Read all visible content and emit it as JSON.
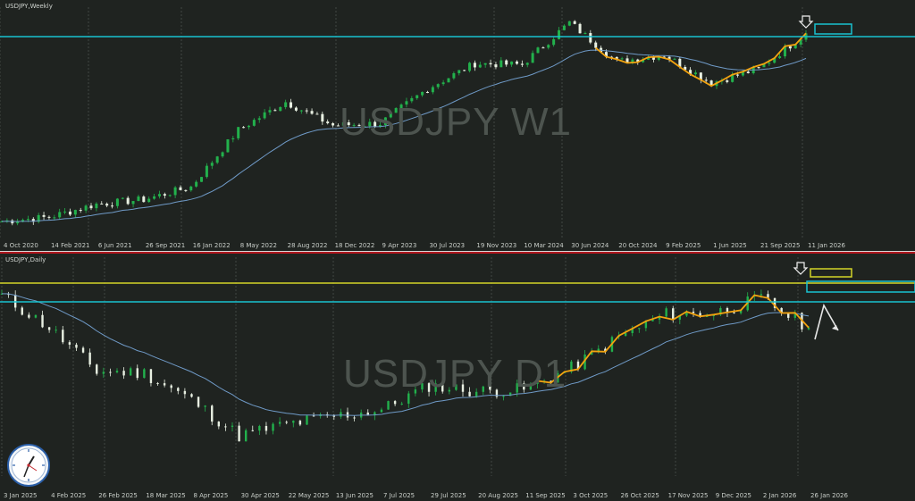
{
  "colors": {
    "bull": "#22b14c",
    "bear": "#e8f0e2",
    "ma": "#6f9ac7",
    "zigzag": "#f2a30f",
    "cyan": "#19c2d0",
    "yellow": "#d4d428",
    "grid": "#5a605b"
  },
  "w1": {
    "label": "USDJPY,Weekly",
    "watermark": "USDJPY W1",
    "arrow_icon": "down-arrow-icon",
    "x_ticks": [
      "4 Oct 2020",
      "14 Feb 2021",
      "6 Jun 2021",
      "26 Sep 2021",
      "16 Jan 2022",
      "8 May 2022",
      "28 Aug 2022",
      "18 Dec 2022",
      "9 Apr 2023",
      "30 Jul 2023",
      "19 Nov 2023",
      "10 Mar 2024",
      "30 Jun 2024",
      "20 Oct 2024",
      "9 Feb 2025",
      "1 Jun 2025",
      "21 Sep 2025",
      "11 Jan 2026"
    ]
  },
  "d1": {
    "label": "USDJPY,Daily",
    "watermark": "USDJPY D1",
    "arrow_icon": "down-arrow-icon",
    "x_ticks": [
      "3 Jan 2025",
      "4 Feb 2025",
      "26 Feb 2025",
      "18 Mar 2025",
      "8 Apr 2025",
      "30 Apr 2025",
      "22 May 2025",
      "13 Jun 2025",
      "7 Jul 2025",
      "29 Jul 2025",
      "20 Aug 2025",
      "11 Sep 2025",
      "3 Oct 2025",
      "26 Oct 2025",
      "17 Nov 2025",
      "9 Dec 2025",
      "2 Jan 2026",
      "26 Jan 2026"
    ]
  },
  "chart_data": [
    {
      "type": "candlestick",
      "symbol": "USDJPY",
      "timeframe": "W1",
      "x": [
        "4 Oct 2020",
        "14 Feb 2021",
        "6 Jun 2021",
        "26 Sep 2021",
        "16 Jan 2022",
        "8 May 2022",
        "28 Aug 2022",
        "18 Dec 2022",
        "9 Apr 2023",
        "30 Jul 2023",
        "19 Nov 2023",
        "10 Mar 2024",
        "30 Jun 2024",
        "20 Oct 2024",
        "9 Feb 2025",
        "1 Jun 2025",
        "21 Sep 2025",
        "11 Jan 2026"
      ],
      "close": [
        104.6,
        105.8,
        109.5,
        110.8,
        114.4,
        130.6,
        138.6,
        131.9,
        132.5,
        142.4,
        149.5,
        149.2,
        161.2,
        150.0,
        152.0,
        144.0,
        148.0,
        158.1
      ],
      "series": [
        {
          "name": "price",
          "values": [
            104.6,
            105.8,
            109.5,
            110.8,
            114.4,
            130.6,
            138.6,
            131.9,
            132.5,
            142.4,
            149.5,
            149.2,
            161.2,
            150.0,
            152.0,
            144.0,
            148.0,
            158.1
          ]
        }
      ],
      "ylim": [
        101,
        162
      ],
      "grid": true
    },
    {
      "type": "candlestick",
      "symbol": "USDJPY",
      "timeframe": "D1",
      "x": [
        "3 Jan 2025",
        "4 Feb 2025",
        "26 Feb 2025",
        "18 Mar 2025",
        "8 Apr 2025",
        "30 Apr 2025",
        "22 May 2025",
        "13 Jun 2025",
        "7 Jul 2025",
        "29 Jul 2025",
        "20 Aug 2025",
        "11 Sep 2025",
        "3 Oct 2025",
        "26 Oct 2025",
        "17 Nov 2025",
        "9 Dec 2025",
        "2 Jan 2026",
        "26 Jan 2026"
      ],
      "close": [
        157.3,
        154.0,
        149.5,
        149.3,
        146.5,
        142.8,
        144.0,
        144.8,
        145.5,
        148.0,
        147.4,
        147.6,
        149.8,
        153.0,
        155.4,
        155.5,
        157.0,
        154.0
      ],
      "series": [
        {
          "name": "price",
          "values": [
            157.3,
            154.0,
            149.5,
            149.3,
            146.5,
            142.8,
            144.0,
            144.8,
            145.5,
            148.0,
            147.4,
            147.6,
            149.8,
            153.0,
            155.4,
            155.5,
            157.0,
            154.0
          ]
        }
      ],
      "ylim": [
        139,
        160
      ],
      "grid": true
    }
  ]
}
